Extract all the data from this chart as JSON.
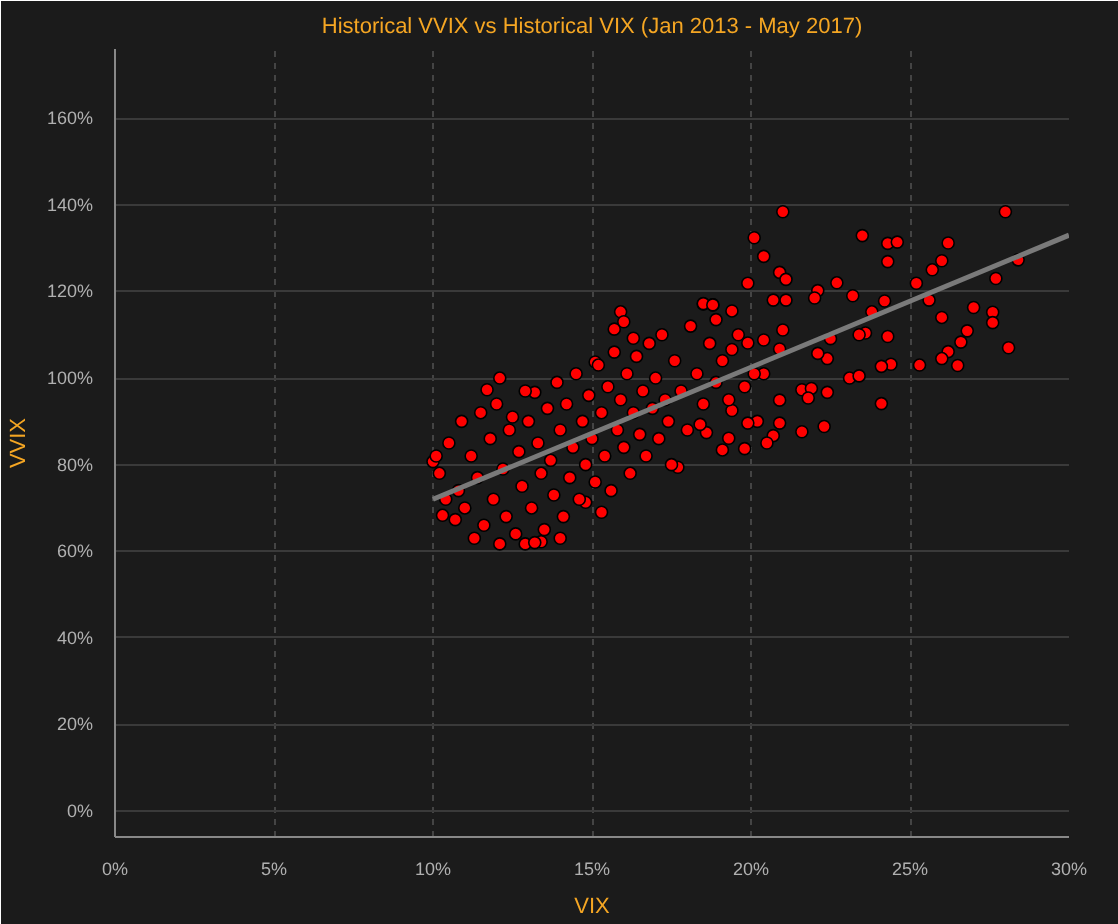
{
  "chart_data": {
    "type": "scatter",
    "title": "Historical VVIX vs Historical VIX (Jan 2013 - May 2017)",
    "xlabel": "VIX",
    "ylabel": "VVIX",
    "xlim": [
      0,
      30
    ],
    "ylim": [
      -6,
      176
    ],
    "xticks": [
      {
        "value": 0,
        "label": "0%"
      },
      {
        "value": 5,
        "label": "5%"
      },
      {
        "value": 10,
        "label": "10%"
      },
      {
        "value": 15,
        "label": "15%"
      },
      {
        "value": 20,
        "label": "20%"
      },
      {
        "value": 25,
        "label": "25%"
      },
      {
        "value": 30,
        "label": "30%"
      }
    ],
    "yticks": [
      {
        "value": 0,
        "label": "0%"
      },
      {
        "value": 20,
        "label": "20%"
      },
      {
        "value": 40,
        "label": "40%"
      },
      {
        "value": 60,
        "label": "60%"
      },
      {
        "value": 80,
        "label": "80%"
      },
      {
        "value": 100,
        "label": "100%"
      },
      {
        "value": 120,
        "label": "120%"
      },
      {
        "value": 140,
        "label": "140%"
      },
      {
        "value": 160,
        "label": "160%"
      }
    ],
    "grid": true,
    "marker": "circle",
    "series": [
      {
        "color": "#ff0000",
        "x": [
          21.0,
          28.0,
          20.1,
          23.5,
          24.3,
          24.6,
          26.2,
          24.3,
          26.0,
          25.7,
          28.4,
          27.7,
          20.9,
          21.1,
          20.4,
          19.9,
          22.7,
          25.2,
          23.2,
          24.2,
          25.6,
          27.0,
          27.6,
          27.6,
          26.0,
          23.8,
          26.8,
          26.6,
          28.1,
          26.2,
          26.0,
          26.5,
          25.3,
          24.4,
          24.1,
          24.3,
          23.6,
          23.4,
          22.5,
          22.4,
          22.1,
          23.1,
          23.4,
          24.1,
          21.6,
          21.9,
          22.4,
          21.8,
          20.9,
          22.3,
          21.6,
          20.9,
          20.7,
          20.5,
          20.2,
          19.9,
          19.4,
          19.1,
          19.8,
          19.3,
          18.6,
          18.4,
          20.9,
          21.0,
          21.1,
          20.7,
          20.4,
          20.1,
          20.4,
          19.9,
          19.4,
          18.9,
          18.5,
          18.8,
          19.4,
          22.1,
          22.0,
          12.1,
          12.9,
          13.4,
          11.7,
          13.2,
          15.9,
          15.7,
          16.3,
          10.0,
          10.3,
          10.7,
          14.8,
          17.7,
          15.1,
          18.5,
          18.8,
          10.2,
          10.5,
          10.8,
          10.9,
          11.0,
          11.2,
          11.4,
          11.5,
          11.6,
          11.8,
          11.9,
          12.0,
          12.2,
          12.3,
          12.4,
          12.6,
          12.7,
          12.8,
          12.9,
          13.0,
          13.1,
          13.3,
          13.4,
          13.5,
          13.6,
          13.7,
          13.8,
          13.9,
          14.0,
          14.1,
          14.2,
          14.3,
          14.4,
          14.5,
          14.6,
          14.7,
          14.8,
          14.9,
          15.0,
          15.1,
          15.2,
          15.3,
          15.4,
          15.5,
          15.6,
          15.7,
          15.8,
          15.9,
          16.0,
          16.1,
          16.2,
          16.3,
          16.4,
          16.5,
          16.6,
          16.7,
          16.8,
          16.9,
          17.0,
          17.1,
          17.2,
          17.3,
          17.4,
          17.6,
          17.8,
          18.0,
          18.1,
          18.3,
          18.5,
          18.7,
          18.9,
          19.1,
          19.3,
          19.6,
          19.8,
          11.3,
          12.1,
          10.4,
          13.2,
          16.0,
          17.5,
          12.5,
          14.0,
          15.3,
          10.1
        ],
        "values": [
          138.4,
          138.4,
          132.4,
          132.9,
          131.1,
          131.4,
          131.2,
          126.9,
          127.1,
          125.0,
          127.3,
          123.0,
          124.4,
          122.8,
          128.1,
          121.9,
          122.0,
          121.9,
          119.0,
          117.8,
          118.0,
          116.3,
          115.2,
          112.8,
          114.0,
          115.3,
          110.9,
          108.3,
          107.0,
          106.1,
          104.5,
          102.9,
          103.0,
          103.2,
          102.7,
          109.6,
          110.4,
          110.0,
          109.1,
          104.5,
          105.7,
          100.0,
          100.5,
          94.1,
          97.3,
          97.6,
          96.7,
          95.4,
          94.9,
          88.8,
          87.6,
          89.6,
          86.7,
          85.0,
          90.0,
          89.6,
          92.5,
          83.4,
          83.7,
          86.1,
          87.4,
          89.3,
          106.7,
          111.1,
          118.0,
          118.0,
          101.0,
          101.0,
          108.8,
          108.1,
          106.6,
          113.5,
          117.1,
          116.9,
          115.5,
          120.2,
          118.5,
          61.7,
          61.7,
          62.2,
          97.3,
          96.7,
          115.3,
          111.3,
          109.2,
          80.7,
          68.3,
          67.3,
          71.3,
          79.4,
          103.7,
          117.2,
          116.9,
          78,
          85,
          74,
          90,
          70,
          82,
          77,
          92,
          66,
          86,
          72,
          94,
          79,
          68,
          88,
          64,
          83,
          75,
          97,
          90,
          70,
          85,
          78,
          65,
          93,
          81,
          73,
          99,
          88,
          68,
          94,
          77,
          84,
          101,
          72,
          90,
          80,
          96,
          86,
          76,
          103,
          92,
          82,
          98,
          74,
          106,
          88,
          95,
          84,
          101,
          78,
          92,
          105,
          87,
          97,
          82,
          108,
          93,
          100,
          86,
          110,
          95,
          90,
          104,
          97,
          88,
          112,
          101,
          94,
          108,
          99,
          104,
          95,
          110,
          98,
          63,
          100,
          72,
          62,
          113,
          80,
          91,
          63,
          69,
          82
        ]
      },
      {
        "type": "line",
        "color": "#7a7a7a",
        "marker": "none",
        "x": [
          10,
          30
        ],
        "values": [
          72,
          133
        ]
      }
    ]
  }
}
